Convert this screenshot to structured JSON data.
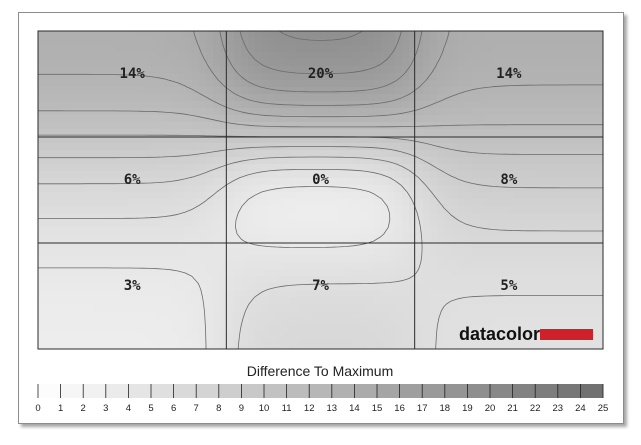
{
  "chart_data": {
    "type": "heatmap",
    "title": "",
    "rows": 3,
    "cols": 3,
    "cells": [
      [
        "14%",
        "20%",
        "14%"
      ],
      [
        "6%",
        "0%",
        "8%"
      ],
      [
        "3%",
        "7%",
        "5%"
      ]
    ],
    "values": [
      [
        14,
        20,
        14
      ],
      [
        6,
        0,
        8
      ],
      [
        3,
        7,
        5
      ]
    ],
    "colorscale": {
      "title": "Difference To Maximum",
      "min": 0,
      "max": 25,
      "ticks": [
        0,
        1,
        2,
        3,
        4,
        5,
        6,
        7,
        8,
        9,
        10,
        11,
        12,
        13,
        14,
        15,
        16,
        17,
        18,
        19,
        20,
        21,
        22,
        23,
        24,
        25
      ],
      "low_color": "#ffffff",
      "high_color": "#6e6e6e"
    },
    "contour_lines": true,
    "grid": true
  },
  "logo": {
    "text": "datacolor",
    "accent_color": "#d0202a"
  }
}
